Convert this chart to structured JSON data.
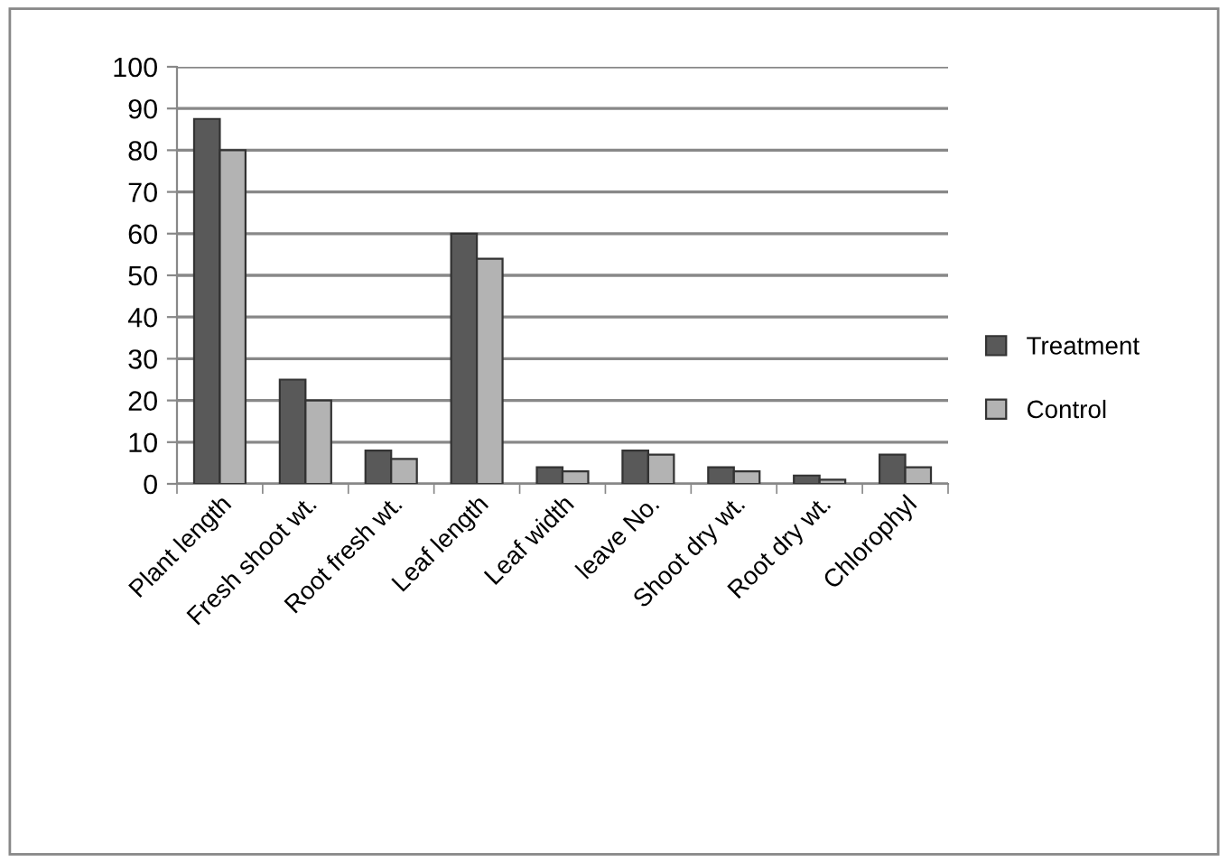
{
  "chart_data": {
    "type": "bar",
    "categories": [
      "Plant length",
      "Fresh shoot wt.",
      "Root fresh wt.",
      "Leaf length",
      "Leaf width",
      "leave No.",
      "Shoot dry wt.",
      "Root dry wt.",
      "Chlorophyl"
    ],
    "series": [
      {
        "name": "Treatment",
        "color": "#595959",
        "values": [
          87.5,
          25,
          8,
          60,
          4,
          8,
          4,
          2,
          7
        ]
      },
      {
        "name": "Control",
        "color": "#b3b3b3",
        "values": [
          80,
          20,
          6,
          54,
          3,
          7,
          3,
          1,
          4
        ]
      }
    ],
    "ylim": [
      0,
      100
    ],
    "yticks": [
      0,
      10,
      20,
      30,
      40,
      50,
      60,
      70,
      80,
      90,
      100
    ],
    "grid": "y",
    "legend": "right"
  }
}
